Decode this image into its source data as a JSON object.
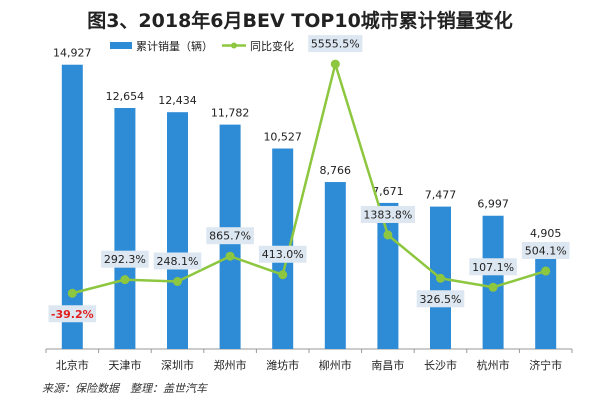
{
  "chart_data": {
    "type": "bar",
    "title": "图3、2018年6月BEV TOP10城市累计销量变化",
    "categories": [
      "北京市",
      "天津市",
      "深圳市",
      "郑州市",
      "潍坊市",
      "柳州市",
      "南昌市",
      "长沙市",
      "杭州市",
      "济宁市"
    ],
    "series": [
      {
        "name": "累计销量（辆）",
        "type": "bar",
        "axis": "left",
        "color": "#2e8bd6",
        "values": [
          14927,
          12654,
          12434,
          11782,
          10527,
          8766,
          7671,
          7477,
          6997,
          4905
        ],
        "labels": [
          "14,927",
          "12,654",
          "12,434",
          "11,782",
          "10,527",
          "8,766",
          "7,671",
          "7,477",
          "6,997",
          "4,905"
        ]
      },
      {
        "name": "同比变化",
        "type": "line",
        "axis": "right",
        "color": "#8dc63f",
        "values": [
          -39.2,
          292.3,
          248.1,
          865.7,
          413.0,
          5555.5,
          1383.8,
          326.5,
          107.1,
          504.1
        ],
        "labels": [
          "-39.2%",
          "292.3%",
          "248.1%",
          "865.7%",
          "413.0%",
          "5555.5%",
          "1383.8%",
          "326.5%",
          "107.1%",
          "504.1%"
        ],
        "label_positions": [
          "below",
          "above",
          "above",
          "above",
          "above",
          "above",
          "above",
          "below",
          "above",
          "above"
        ],
        "negative_label_color": "#e02020"
      }
    ],
    "ylim": [
      0,
      15700
    ],
    "y2lim": [
      -1400,
      5900
    ],
    "grid": false,
    "legend": "top-center",
    "label_box_color": "#dde7f1"
  },
  "source": "来源：保险数据　整理：盖世汽车"
}
